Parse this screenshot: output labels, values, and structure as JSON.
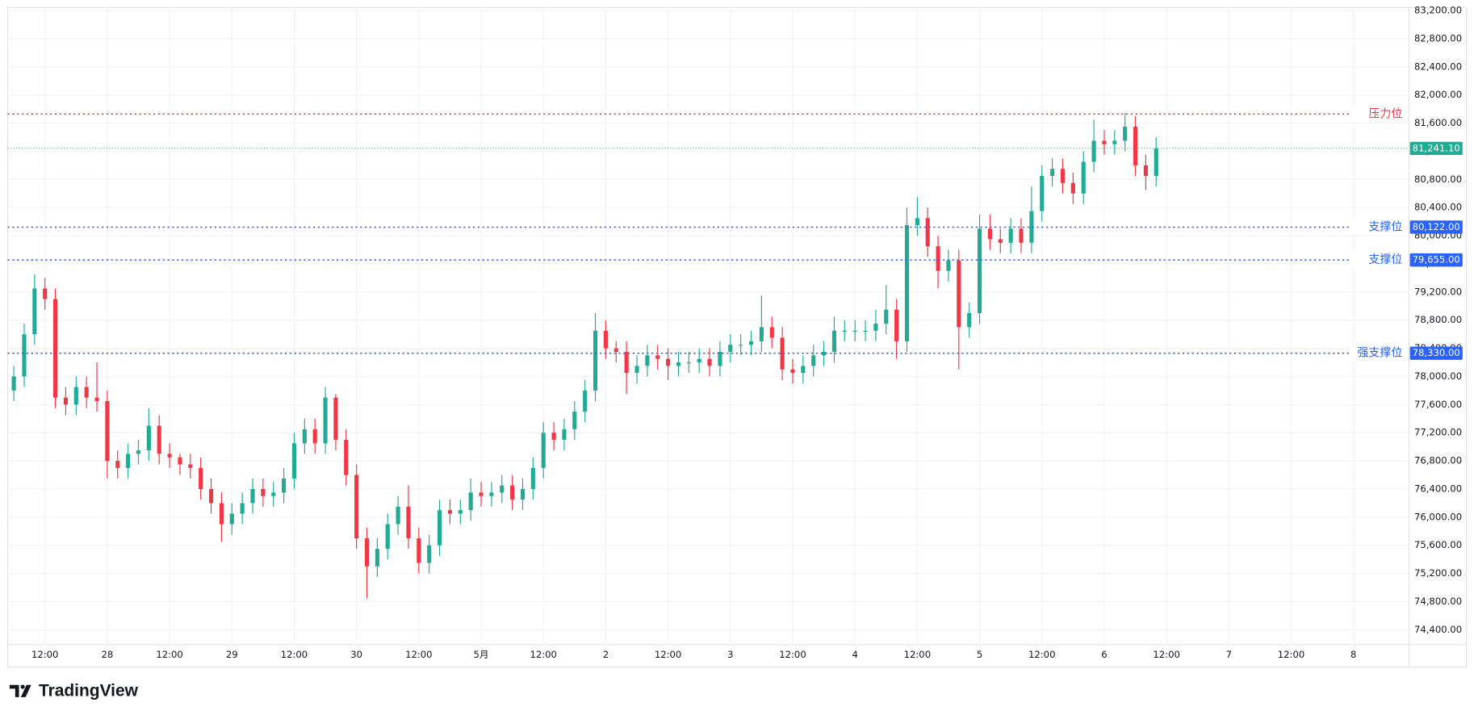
{
  "chart_data": {
    "type": "candlestick",
    "brand": "TradingView",
    "up_color": "#22ab94",
    "down_color": "#f23645",
    "grid": true,
    "categories": [
      null,
      null,
      null,
      "12:00",
      null,
      null,
      null,
      null,
      null,
      "28",
      null,
      null,
      null,
      null,
      null,
      "12:00",
      null,
      null,
      null,
      null,
      null,
      "29",
      null,
      null,
      null,
      null,
      null,
      "12:00",
      null,
      null,
      null,
      null,
      null,
      "30",
      null,
      null,
      null,
      null,
      null,
      "12:00",
      null,
      null,
      null,
      null,
      null,
      "5月",
      null,
      null,
      null,
      null,
      null,
      "12:00",
      null,
      null,
      null,
      null,
      null,
      "2",
      null,
      null,
      null,
      null,
      null,
      "12:00",
      null,
      null,
      null,
      null,
      null,
      "3",
      null,
      null,
      null,
      null,
      null,
      "12:00",
      null,
      null,
      null,
      null,
      null,
      "4",
      null,
      null,
      null,
      null,
      null,
      "12:00",
      null,
      null,
      null,
      null,
      null,
      "5",
      null,
      null,
      null,
      null,
      null,
      "12:00",
      null,
      null,
      null,
      null,
      null,
      "6",
      null,
      null,
      null,
      null,
      null,
      "12:00",
      null,
      null,
      null,
      null,
      null,
      "7",
      null,
      null,
      null,
      null,
      null,
      "12:00",
      null,
      null,
      null,
      null,
      null,
      "8",
      null,
      null,
      null,
      null,
      null
    ],
    "open": [
      77800,
      78000,
      78600,
      79250,
      79100,
      77700,
      77600,
      77850,
      77700,
      77650,
      76800,
      76700,
      76900,
      76950,
      77300,
      76900,
      76850,
      76750,
      76700,
      76400,
      76200,
      75900,
      76050,
      76200,
      76400,
      76300,
      76350,
      76550,
      77050,
      77250,
      77050,
      77700,
      77100,
      76600,
      75700,
      75300,
      75550,
      75900,
      76150,
      75700,
      75350,
      75600,
      76100,
      76050,
      76100,
      76350,
      76300,
      76350,
      76450,
      76250,
      76400,
      76700,
      77200,
      77100,
      77250,
      77500,
      77800,
      78650,
      78400,
      78350,
      78050,
      78150,
      78300,
      78250,
      78150,
      78200,
      78200,
      78250,
      78150,
      78350,
      78450,
      78450,
      78500,
      78700,
      78550,
      78100,
      78050,
      78150,
      78300,
      78350,
      78650,
      78650,
      78650,
      78650,
      78750,
      78950,
      78500,
      80150,
      80250,
      79850,
      79500,
      79650,
      78700,
      78900,
      80100,
      79950,
      79900,
      80100,
      79900,
      80350,
      80850,
      80950,
      80750,
      80600,
      81050,
      81350,
      81300,
      81350,
      81550,
      81000,
      80850,
      null,
      null,
      null,
      null,
      null,
      null,
      null,
      null,
      null,
      null,
      null,
      null,
      null,
      null,
      null,
      null,
      null,
      null,
      null,
      null,
      null,
      null,
      null,
      null
    ],
    "high": [
      78150,
      78750,
      79450,
      79400,
      79250,
      77850,
      78000,
      78000,
      78200,
      77800,
      76950,
      77050,
      77100,
      77550,
      77450,
      77050,
      76900,
      76900,
      76850,
      76550,
      76350,
      76200,
      76350,
      76550,
      76550,
      76500,
      76700,
      77200,
      77400,
      77400,
      77850,
      77750,
      77250,
      76750,
      75850,
      75700,
      76050,
      76300,
      76450,
      75850,
      75750,
      76250,
      76250,
      76250,
      76550,
      76500,
      76500,
      76600,
      76600,
      76550,
      76850,
      77350,
      77350,
      77400,
      77650,
      77950,
      78900,
      78800,
      78500,
      78500,
      78300,
      78450,
      78450,
      78400,
      78350,
      78350,
      78400,
      78400,
      78500,
      78600,
      78600,
      78650,
      79150,
      78850,
      78700,
      78250,
      78300,
      78450,
      78500,
      78850,
      78800,
      78800,
      78800,
      78950,
      79300,
      79100,
      80400,
      80550,
      80400,
      80000,
      79800,
      79800,
      79050,
      80300,
      80300,
      80100,
      80250,
      80250,
      80700,
      81000,
      81100,
      81100,
      80900,
      81200,
      81650,
      81500,
      81500,
      81750,
      81700,
      81150,
      81400,
      null,
      null,
      null,
      null,
      null,
      null,
      null,
      null,
      null,
      null,
      null,
      null,
      null,
      null,
      null,
      null,
      null,
      null,
      null,
      null,
      null,
      null,
      null,
      null
    ],
    "low": [
      77650,
      77850,
      78450,
      78950,
      77550,
      77450,
      77450,
      77550,
      77500,
      76550,
      76550,
      76550,
      76750,
      76800,
      76750,
      76700,
      76600,
      76550,
      76250,
      76050,
      75650,
      75750,
      75900,
      76050,
      76150,
      76150,
      76200,
      76400,
      76900,
      76900,
      76900,
      76950,
      76450,
      75550,
      74850,
      75150,
      75400,
      75750,
      75550,
      75200,
      75200,
      75450,
      75900,
      75900,
      75950,
      76150,
      76150,
      76200,
      76100,
      76100,
      76250,
      76550,
      76950,
      76950,
      77100,
      77350,
      77650,
      78250,
      78200,
      77750,
      77900,
      78000,
      78100,
      77950,
      78000,
      78050,
      78050,
      78000,
      78000,
      78200,
      78300,
      78300,
      78350,
      78400,
      77950,
      77900,
      77900,
      78000,
      78150,
      78200,
      78500,
      78500,
      78500,
      78500,
      78600,
      78250,
      78350,
      80000,
      79700,
      79250,
      79350,
      78100,
      78550,
      78750,
      79800,
      79750,
      79750,
      79750,
      79750,
      80200,
      80700,
      80600,
      80450,
      80450,
      80900,
      81150,
      81150,
      81200,
      80850,
      80650,
      80700,
      null,
      null,
      null,
      null,
      null,
      null,
      null,
      null,
      null,
      null,
      null,
      null,
      null,
      null,
      null,
      null,
      null,
      null,
      null,
      null,
      null,
      null,
      null,
      null
    ],
    "close": [
      78000,
      78600,
      79250,
      79100,
      77700,
      77600,
      77850,
      77700,
      77650,
      76800,
      76700,
      76900,
      76950,
      77300,
      76900,
      76850,
      76750,
      76700,
      76400,
      76200,
      75900,
      76050,
      76200,
      76400,
      76300,
      76350,
      76550,
      77050,
      77250,
      77050,
      77700,
      77100,
      76600,
      75700,
      75300,
      75550,
      75900,
      76150,
      75700,
      75350,
      75600,
      76100,
      76050,
      76100,
      76350,
      76300,
      76350,
      76450,
      76250,
      76400,
      76700,
      77200,
      77100,
      77250,
      77500,
      77800,
      78650,
      78400,
      78350,
      78050,
      78150,
      78300,
      78250,
      78150,
      78200,
      78200,
      78250,
      78150,
      78350,
      78450,
      78450,
      78500,
      78700,
      78550,
      78100,
      78050,
      78150,
      78300,
      78350,
      78650,
      78650,
      78650,
      78650,
      78750,
      78950,
      78500,
      80150,
      80250,
      79850,
      79500,
      79650,
      78700,
      78900,
      80100,
      79950,
      79900,
      80100,
      79900,
      80350,
      80850,
      80950,
      80750,
      80600,
      81050,
      81350,
      81300,
      81350,
      81550,
      81000,
      80850,
      81241.1,
      null,
      null,
      null,
      null,
      null,
      null,
      null,
      null,
      null,
      null,
      null,
      null,
      null,
      null,
      null,
      null,
      null,
      null,
      null,
      null,
      null,
      null,
      null,
      null
    ],
    "ylim": [
      74190,
      83350
    ],
    "yticks": [
      {
        "value": 74400,
        "label": "74,400.00"
      },
      {
        "value": 74800,
        "label": "74,800.00"
      },
      {
        "value": 75200,
        "label": "75,200.00"
      },
      {
        "value": 75600,
        "label": "75,600.00"
      },
      {
        "value": 76000,
        "label": "76,000.00"
      },
      {
        "value": 76400,
        "label": "76,400.00"
      },
      {
        "value": 76800,
        "label": "76,800.00"
      },
      {
        "value": 77200,
        "label": "77,200.00"
      },
      {
        "value": 77600,
        "label": "77,600.00"
      },
      {
        "value": 78000,
        "label": "78,000.00"
      },
      {
        "value": 78400,
        "label": "78,400.00"
      },
      {
        "value": 78800,
        "label": "78,800.00"
      },
      {
        "value": 79200,
        "label": "79,200.00"
      },
      {
        "value": 79600,
        "label": "79,600.00"
      },
      {
        "value": 80000,
        "label": "80,000.00"
      },
      {
        "value": 80400,
        "label": "80,400.00"
      },
      {
        "value": 80800,
        "label": "80,800.00"
      },
      {
        "value": 81200,
        "label": "81,200.00"
      },
      {
        "value": 81600,
        "label": "81,600.00"
      },
      {
        "value": 82000,
        "label": "82,000.00"
      },
      {
        "value": 82400,
        "label": "82,400.00"
      },
      {
        "value": 82800,
        "label": "82,800.00"
      },
      {
        "value": 83200,
        "label": "83,200.00"
      }
    ],
    "last_price": {
      "value": 81241.1,
      "label": "81,241.10",
      "color": "#22ab94"
    },
    "levels": [
      {
        "name": "压力位",
        "value": 81730,
        "color": "#f23645"
      },
      {
        "name": "支撑位",
        "value": 80122,
        "value_label": "80,122.00",
        "color": "#2962ff"
      },
      {
        "name": "支撑位",
        "value": 79655,
        "value_label": "79,655.00",
        "color": "#2962ff"
      },
      {
        "name": "强支撑位",
        "value": 78330,
        "value_label": "78,330.00",
        "color": "#2962ff"
      }
    ]
  }
}
